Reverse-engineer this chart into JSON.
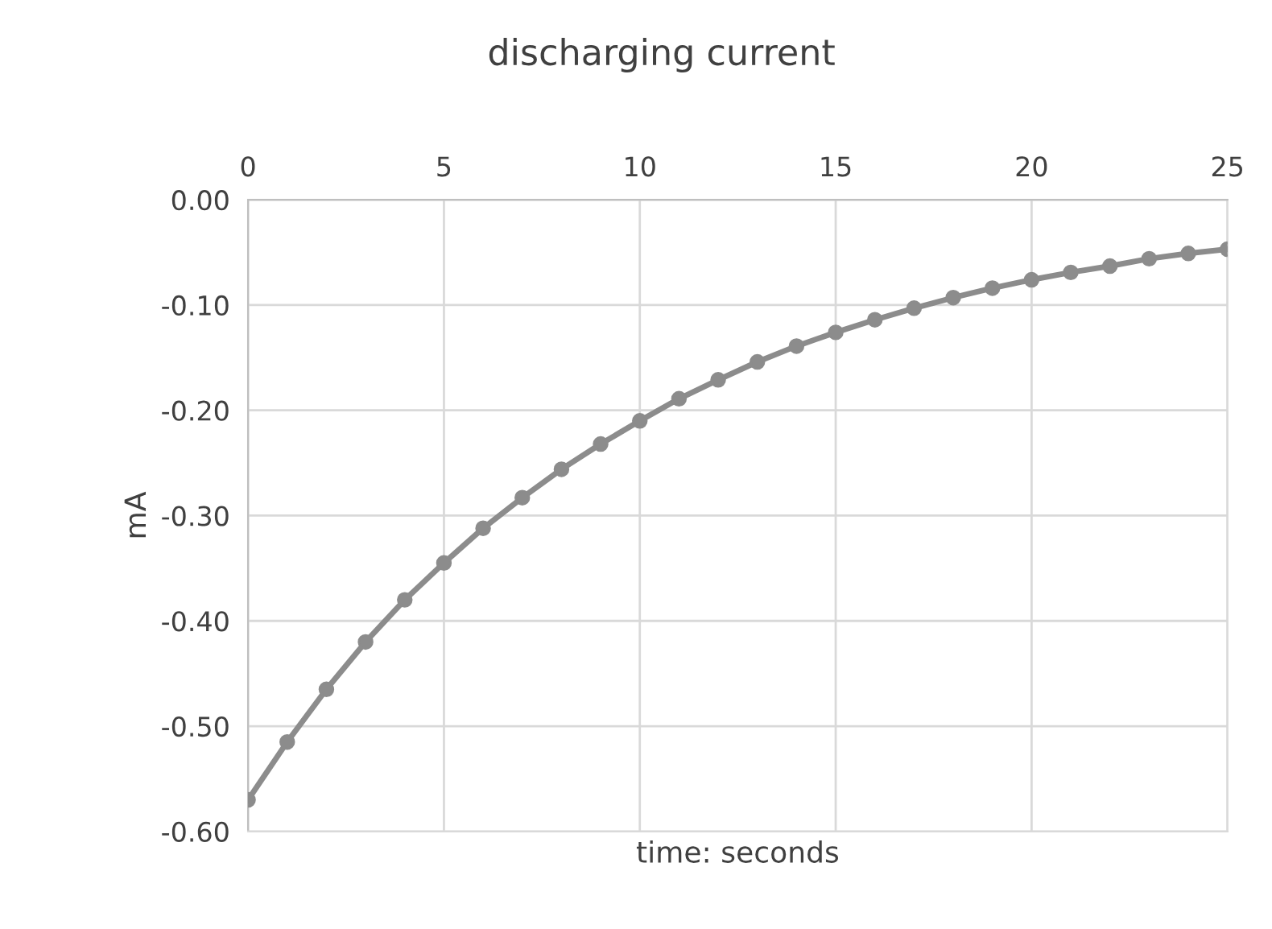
{
  "chart_data": {
    "type": "line",
    "title": "discharging current",
    "xlabel": "time: seconds",
    "ylabel": "mA",
    "x": [
      0,
      1,
      2,
      3,
      4,
      5,
      6,
      7,
      8,
      9,
      10,
      11,
      12,
      13,
      14,
      15,
      16,
      17,
      18,
      19,
      20,
      21,
      22,
      23,
      24,
      25
    ],
    "series": [
      {
        "color": "#8c8c8c",
        "values": [
          -0.57,
          -0.515,
          -0.465,
          -0.42,
          -0.38,
          -0.345,
          -0.312,
          -0.283,
          -0.256,
          -0.232,
          -0.21,
          -0.189,
          -0.171,
          -0.154,
          -0.139,
          -0.126,
          -0.114,
          -0.103,
          -0.093,
          -0.084,
          -0.076,
          -0.069,
          -0.063,
          -0.056,
          -0.051,
          -0.047
        ]
      }
    ],
    "xlim": [
      0,
      25
    ],
    "xticks": [
      0,
      5,
      10,
      15,
      20,
      25
    ],
    "ylim": [
      -0.6,
      0
    ],
    "yticks": [
      {
        "value": 0,
        "label": "0.00"
      },
      {
        "value": -0.1,
        "label": "-0.10"
      },
      {
        "value": -0.2,
        "label": "-0.20"
      },
      {
        "value": -0.3,
        "label": "-0.30"
      },
      {
        "value": -0.4,
        "label": "-0.40"
      },
      {
        "value": -0.5,
        "label": "-0.50"
      },
      {
        "value": -0.6,
        "label": "-0.60"
      }
    ],
    "grid": true,
    "marker": "circle",
    "line_style": "solid",
    "legend": false
  }
}
